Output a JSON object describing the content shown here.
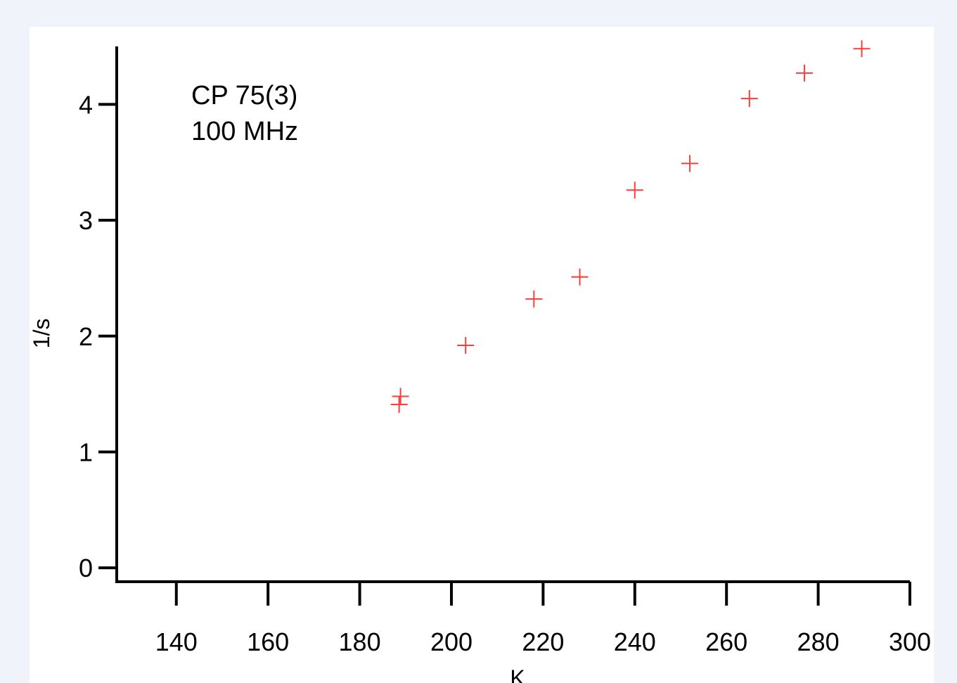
{
  "chart_data": {
    "type": "scatter",
    "title": "",
    "xlabel": "K",
    "ylabel": "1/s",
    "annotations": [
      "CP 75(3)",
      "100 MHz"
    ],
    "xlim": [
      127,
      300
    ],
    "ylim": [
      -0.12,
      4.5
    ],
    "x_ticks": [
      140,
      160,
      180,
      200,
      220,
      240,
      260,
      280,
      300
    ],
    "y_ticks": [
      0,
      1,
      2,
      3,
      4
    ],
    "grid": false,
    "marker": "plus",
    "marker_color": "#ff3b3b",
    "series": [
      {
        "points": [
          {
            "x": 188.9,
            "y": 1.48
          },
          {
            "x": 188.6,
            "y": 1.41
          },
          {
            "x": 203.1,
            "y": 1.92
          },
          {
            "x": 218.0,
            "y": 2.32
          },
          {
            "x": 228.0,
            "y": 2.51
          },
          {
            "x": 240.0,
            "y": 3.26
          },
          {
            "x": 252.0,
            "y": 3.49
          },
          {
            "x": 265.0,
            "y": 4.05
          },
          {
            "x": 277.0,
            "y": 4.27
          },
          {
            "x": 289.5,
            "y": 4.48
          }
        ]
      }
    ]
  }
}
